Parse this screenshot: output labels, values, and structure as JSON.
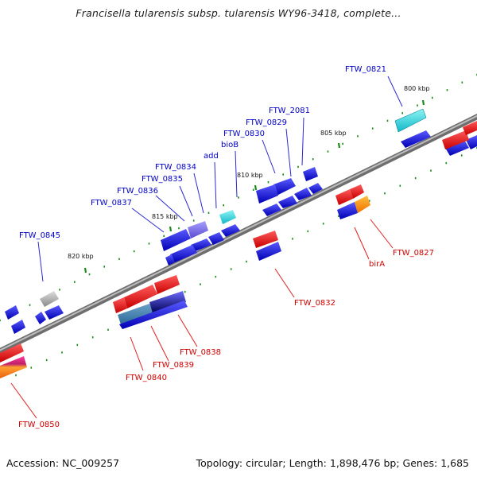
{
  "title": "Francisella tularensis subsp. tularensis WY96-3418, complete...",
  "footer": {
    "accession": "Accession: NC_009257",
    "topology": "Topology: circular; Length: 1,898,476 bp; Genes: 1,685"
  },
  "ruler": [
    "800 kbp",
    "805 kbp",
    "810 kbp",
    "815 kbp",
    "820 kbp"
  ],
  "genes_forward": [
    "FTW_0821",
    "FTW_2081",
    "FTW_0829",
    "FTW_0830",
    "bioB",
    "add",
    "FTW_0834",
    "FTW_0835",
    "FTW_0836",
    "FTW_0837",
    "FTW_0845"
  ],
  "genes_reverse": [
    "FTW_0827",
    "birA",
    "FTW_0832",
    "FTW_0838",
    "FTW_0839",
    "FTW_0840",
    "FTW_0850"
  ],
  "colors": {
    "forward": "#1a1acc",
    "reverse": "#e60000",
    "backbone": "#808080",
    "tick": "#1a8a1a"
  }
}
